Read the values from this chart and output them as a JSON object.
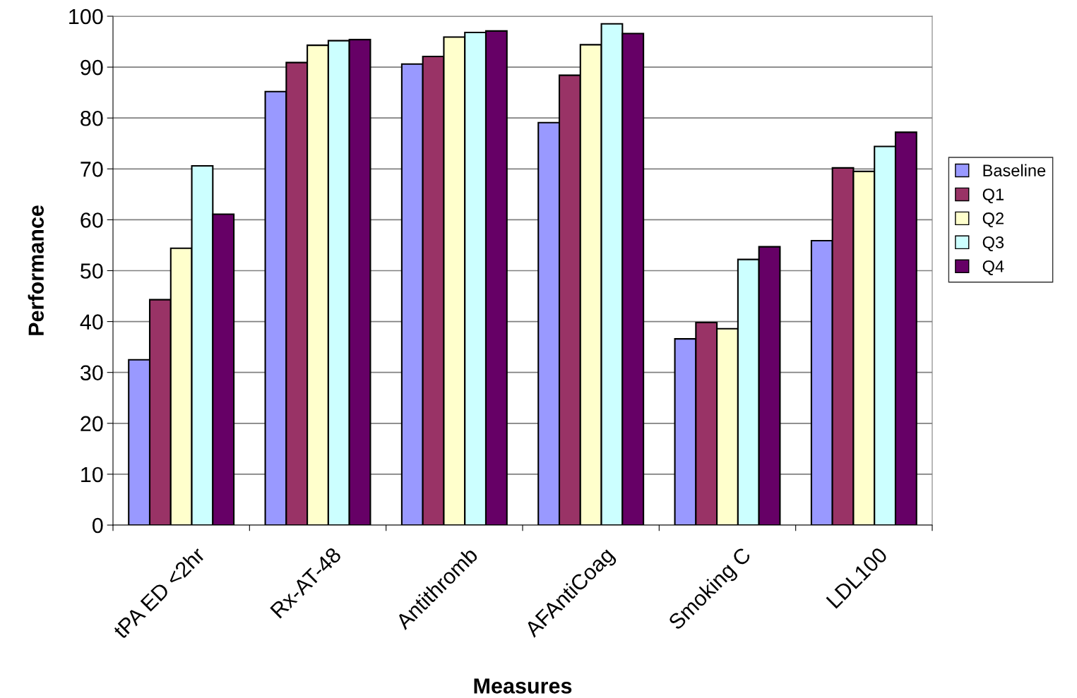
{
  "chart_data": {
    "type": "bar",
    "xlabel": "Measures",
    "ylabel": "Performance",
    "categories": [
      "tPA ED <2hr",
      "Rx-AT-48",
      "Antithromb",
      "AFAntiCoag",
      "Smoking C",
      "LDL100"
    ],
    "series": [
      {
        "name": "Baseline",
        "color": "#9999ff",
        "values": [
          32.5,
          85.2,
          90.6,
          79.1,
          36.6,
          55.9
        ]
      },
      {
        "name": "Q1",
        "color": "#993366",
        "values": [
          44.3,
          90.9,
          92.1,
          88.4,
          39.8,
          70.2
        ]
      },
      {
        "name": "Q2",
        "color": "#ffffcc",
        "values": [
          54.4,
          94.3,
          95.9,
          94.4,
          38.6,
          69.5
        ]
      },
      {
        "name": "Q3",
        "color": "#ccffff",
        "values": [
          70.6,
          95.2,
          96.8,
          98.5,
          52.2,
          74.4
        ]
      },
      {
        "name": "Q4",
        "color": "#660066",
        "values": [
          61.1,
          95.4,
          97.1,
          96.6,
          54.7,
          77.2
        ]
      }
    ],
    "ylim": [
      0,
      100
    ],
    "yticks": [
      0,
      10,
      20,
      30,
      40,
      50,
      60,
      70,
      80,
      90,
      100
    ],
    "grid": "y",
    "legend": "right"
  }
}
